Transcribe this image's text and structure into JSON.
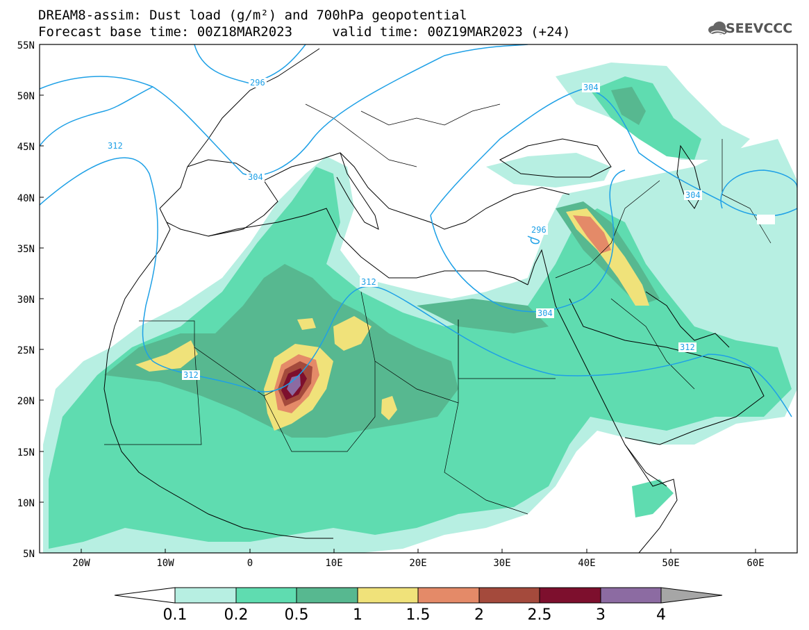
{
  "title": {
    "line1": "DREAM8-assim: Dust load (g/m²) and 700hPa geopotential",
    "line2": "Forecast base time: 00Z18MAR2023     valid time: 00Z19MAR2023 (+24)"
  },
  "logo": {
    "text": "SEEVCCC",
    "icon": "cloud-logo-icon"
  },
  "map": {
    "lon_range": [
      -25,
      65
    ],
    "lat_range": [
      5,
      55
    ],
    "lat_labels": [
      "55N",
      "50N",
      "45N",
      "40N",
      "35N",
      "30N",
      "25N",
      "20N",
      "15N",
      "10N",
      "5N"
    ],
    "lon_labels": [
      "20W",
      "10W",
      "0",
      "10E",
      "20E",
      "30E",
      "40E",
      "50E",
      "60E"
    ],
    "contour_labels": [
      "296",
      "312",
      "304",
      "304",
      "304",
      "296",
      "312",
      "304",
      "312",
      "312"
    ]
  },
  "colorbar": {
    "labels": [
      "0.1",
      "0.2",
      "0.5",
      "1",
      "1.5",
      "2",
      "2.5",
      "3",
      "4"
    ],
    "colors": [
      "#b7efe2",
      "#5fdcb0",
      "#57b890",
      "#f0e27a",
      "#e48a68",
      "#a44a3c",
      "#7d0f2d",
      "#8c6ba2"
    ],
    "over_color": "#a6a6a6",
    "under_color": "#ffffff"
  },
  "colors": {
    "geopotential_line": "#1ea0e6",
    "coastline": "#000000"
  }
}
